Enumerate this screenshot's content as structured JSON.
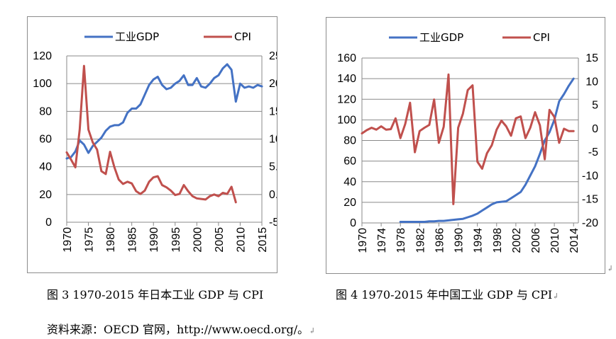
{
  "captions": {
    "fig3": "图 3 1970-2015 年日本工业 GDP 与 CPI",
    "fig4": "图 4 1970-2015 年中国工业 GDP 与 CPI",
    "source": "资料来源：OECD 官网，http://www.oecd.org/。"
  },
  "colors": {
    "gdp": "#4472C4",
    "cpi": "#C0504D"
  },
  "chart_data": [
    {
      "type": "line",
      "title": "",
      "legend_position": "top",
      "grid": true,
      "x_ticks": [
        "1970",
        "1975",
        "1980",
        "1985",
        "1990",
        "1995",
        "2000",
        "2005",
        "2010",
        "2015"
      ],
      "x_range": [
        1970,
        2015
      ],
      "y_ticks_left": [
        "0",
        "20",
        "40",
        "60",
        "80",
        "100",
        "120"
      ],
      "y_range_left": [
        0,
        120
      ],
      "y_ticks_right": [
        "-5.0",
        "0.0",
        "5.0",
        "10.0",
        "15.0",
        "20.0",
        "25.0"
      ],
      "y_range_right": [
        -5,
        25
      ],
      "series": [
        {
          "name": "工业GDP",
          "axis": "left",
          "color": "#4472C4",
          "x": [
            1970,
            1971,
            1972,
            1973,
            1974,
            1975,
            1976,
            1977,
            1978,
            1979,
            1980,
            1981,
            1982,
            1983,
            1984,
            1985,
            1986,
            1987,
            1988,
            1989,
            1990,
            1991,
            1992,
            1993,
            1994,
            1995,
            1996,
            1997,
            1998,
            1999,
            2000,
            2001,
            2002,
            2003,
            2004,
            2005,
            2006,
            2007,
            2008,
            2009,
            2010,
            2011,
            2012,
            2013,
            2014,
            2015
          ],
          "values": [
            46,
            47,
            51,
            59,
            56,
            50,
            55,
            58,
            61,
            66,
            69,
            70,
            70,
            72,
            79,
            82,
            82,
            85,
            92,
            99,
            103,
            105,
            99,
            96,
            97,
            100,
            102,
            106,
            99,
            99,
            104,
            98,
            97,
            100,
            104,
            106,
            111,
            114,
            110,
            87,
            100,
            97,
            98,
            97,
            99,
            98
          ]
        },
        {
          "name": "CPI",
          "axis": "right",
          "color": "#C0504D",
          "x": [
            1970,
            1971,
            1972,
            1973,
            1974,
            1975,
            1976,
            1977,
            1978,
            1979,
            1980,
            1981,
            1982,
            1983,
            1984,
            1985,
            1986,
            1987,
            1988,
            1989,
            1990,
            1991,
            1992,
            1993,
            1994,
            1995,
            1996,
            1997,
            1998,
            1999,
            2000,
            2001,
            2002,
            2003,
            2004,
            2005,
            2006,
            2007,
            2008,
            2009
          ],
          "values": [
            7.6,
            6.3,
            4.9,
            11.7,
            23.2,
            11.7,
            9.4,
            8.1,
            4.2,
            3.7,
            7.7,
            4.9,
            2.7,
            1.9,
            2.3,
            2.0,
            0.6,
            0.1,
            0.7,
            2.3,
            3.1,
            3.3,
            1.7,
            1.3,
            0.7,
            -0.1,
            0.1,
            1.7,
            0.6,
            -0.3,
            -0.7,
            -0.8,
            -0.9,
            -0.3,
            0.0,
            -0.3,
            0.3,
            0.1,
            1.4,
            -1.4
          ]
        }
      ]
    },
    {
      "type": "line",
      "title": "",
      "legend_position": "top",
      "grid": true,
      "x_ticks": [
        "1970",
        "1974",
        "1978",
        "1982",
        "1986",
        "1990",
        "1994",
        "1998",
        "2002",
        "2006",
        "2010",
        "2014"
      ],
      "x_range": [
        1970,
        2015
      ],
      "y_ticks_left": [
        "0",
        "20",
        "40",
        "60",
        "80",
        "100",
        "120",
        "140",
        "160"
      ],
      "y_range_left": [
        0,
        160
      ],
      "y_ticks_right": [
        "-20",
        "-15",
        "-10",
        "-5",
        "0",
        "5",
        "10",
        "15"
      ],
      "y_range_right": [
        -20,
        15
      ],
      "series": [
        {
          "name": "工业GDP",
          "axis": "left",
          "color": "#4472C4",
          "x": [
            1978,
            1979,
            1980,
            1981,
            1982,
            1983,
            1984,
            1985,
            1986,
            1987,
            1988,
            1989,
            1990,
            1991,
            1992,
            1993,
            1994,
            1995,
            1996,
            1997,
            1998,
            1999,
            2000,
            2001,
            2002,
            2003,
            2004,
            2005,
            2006,
            2007,
            2008,
            2009,
            2010,
            2011,
            2012,
            2013,
            2014
          ],
          "values": [
            1,
            1,
            1,
            1,
            1,
            1,
            1.5,
            1.5,
            2,
            2,
            2.5,
            3,
            3.5,
            4,
            5.5,
            7,
            9,
            12,
            15,
            18,
            20,
            20.5,
            21,
            24,
            27,
            30,
            37,
            46,
            55,
            67,
            80,
            88,
            100,
            118,
            125,
            133,
            140
          ]
        },
        {
          "name": "CPI",
          "axis": "right",
          "color": "#C0504D",
          "x": [
            1970,
            1971,
            1972,
            1973,
            1974,
            1975,
            1976,
            1977,
            1978,
            1979,
            1980,
            1981,
            1982,
            1983,
            1984,
            1985,
            1986,
            1987,
            1988,
            1989,
            1990,
            1991,
            1992,
            1993,
            1994,
            1995,
            1996,
            1997,
            1998,
            1999,
            2000,
            2001,
            2002,
            2003,
            2004,
            2005,
            2006,
            2007,
            2008,
            2009,
            2010,
            2011,
            2012,
            2013,
            2014
          ],
          "values": [
            -1,
            -0.3,
            0.2,
            -0.2,
            0.5,
            -0.2,
            -0.1,
            2.2,
            -2.0,
            1.0,
            5.5,
            -5.0,
            -0.5,
            0.2,
            0.8,
            6.2,
            -3.0,
            0.4,
            11.5,
            -16.0,
            0.2,
            3.2,
            8.2,
            9.2,
            -7.0,
            -8.5,
            -5.2,
            -3.5,
            -0.2,
            1.7,
            0.5,
            -1.5,
            2.2,
            2.6,
            -2.0,
            0.2,
            3.5,
            0.7,
            -6.5,
            4.0,
            2.5,
            -3.0,
            0.0,
            -0.5,
            -0.5
          ]
        }
      ]
    }
  ]
}
